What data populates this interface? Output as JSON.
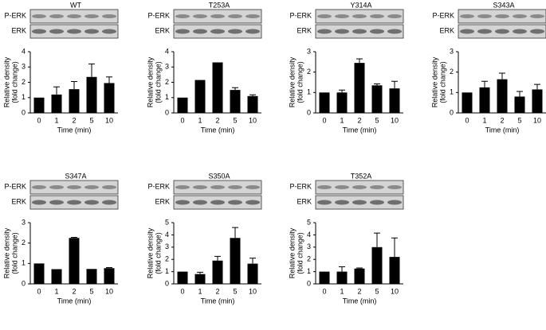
{
  "chart_data": [
    {
      "type": "bar",
      "title": "WT",
      "blot_labels": [
        "P-ERK",
        "ERK"
      ],
      "categories": [
        "0",
        "1",
        "2",
        "5",
        "10"
      ],
      "values": [
        1,
        1.2,
        1.55,
        2.35,
        1.95
      ],
      "errors": [
        0,
        0.5,
        0.5,
        0.85,
        0.4
      ],
      "color": "#000000",
      "ylim": [
        0,
        4
      ],
      "yticks": [
        0,
        1,
        2,
        3,
        4
      ],
      "xlabel": "Time (min)",
      "ylabel": [
        "Relative density",
        "(fold change)"
      ]
    },
    {
      "type": "bar",
      "title": "T253A",
      "blot_labels": [
        "P-ERK",
        "ERK"
      ],
      "categories": [
        "0",
        "1",
        "2",
        "5",
        "10"
      ],
      "values": [
        1,
        2.15,
        3.3,
        1.5,
        1.1
      ],
      "errors": [
        0,
        0,
        0,
        0.15,
        0.08
      ],
      "color": "#000000",
      "ylim": [
        0,
        4
      ],
      "yticks": [
        0,
        1,
        2,
        3,
        4
      ],
      "xlabel": "Time (min)",
      "ylabel": [
        "Relative density",
        "(fold change)"
      ]
    },
    {
      "type": "bar",
      "title": "Y314A",
      "blot_labels": [
        "P-ERK",
        "ERK"
      ],
      "categories": [
        "0",
        "1",
        "2",
        "5",
        "10"
      ],
      "values": [
        1,
        1,
        2.45,
        1.35,
        1.2
      ],
      "errors": [
        0,
        0.12,
        0.2,
        0.07,
        0.35
      ],
      "color": "#000000",
      "ylim": [
        0,
        3
      ],
      "yticks": [
        0,
        1,
        2,
        3
      ],
      "xlabel": "Time (min)",
      "ylabel": [
        "Relative density",
        "(fold change)"
      ]
    },
    {
      "type": "bar",
      "title": "S343A",
      "blot_labels": [
        "P-ERK",
        "ERK"
      ],
      "categories": [
        "0",
        "1",
        "2",
        "5",
        "10"
      ],
      "values": [
        1,
        1.25,
        1.65,
        0.8,
        1.15
      ],
      "errors": [
        0,
        0.3,
        0.3,
        0.25,
        0.25
      ],
      "color": "#000000",
      "ylim": [
        0,
        3
      ],
      "yticks": [
        0,
        1,
        2,
        3
      ],
      "xlabel": "Time (min)",
      "ylabel": [
        "Relative density",
        "(fold change)"
      ]
    },
    {
      "type": "bar",
      "title": "S347A",
      "blot_labels": [
        "P-ERK",
        "ERK"
      ],
      "categories": [
        "0",
        "1",
        "2",
        "5",
        "10"
      ],
      "values": [
        1,
        0.72,
        2.25,
        0.73,
        0.77
      ],
      "errors": [
        0,
        0,
        0.03,
        0,
        0.03
      ],
      "color": "#000000",
      "ylim": [
        0,
        3
      ],
      "yticks": [
        0,
        1,
        2,
        3
      ],
      "xlabel": "Time (min)",
      "ylabel": [
        "Relative density",
        "(fold change)"
      ]
    },
    {
      "type": "bar",
      "title": "S350A",
      "blot_labels": [
        "P-ERK",
        "ERK"
      ],
      "categories": [
        "0",
        "1",
        "2",
        "5",
        "10"
      ],
      "values": [
        1,
        0.8,
        1.9,
        3.75,
        1.65
      ],
      "errors": [
        0,
        0.15,
        0.35,
        0.85,
        0.45
      ],
      "color": "#000000",
      "ylim": [
        0,
        5
      ],
      "yticks": [
        0,
        1,
        2,
        3,
        4,
        5
      ],
      "xlabel": "Time (min)",
      "ylabel": [
        "Relative density",
        "(fold change)"
      ]
    },
    {
      "type": "bar",
      "title": "T352A",
      "blot_labels": [
        "P-ERK",
        "ERK"
      ],
      "categories": [
        "0",
        "1",
        "2",
        "5",
        "10"
      ],
      "values": [
        1,
        1,
        1.25,
        3,
        2.2
      ],
      "errors": [
        0,
        0.4,
        0.05,
        1.15,
        1.55
      ],
      "color": "#000000",
      "ylim": [
        0,
        5
      ],
      "yticks": [
        0,
        1,
        2,
        3,
        4,
        5
      ],
      "xlabel": "Time (min)",
      "ylabel": [
        "Relative density",
        "(fold change)"
      ]
    }
  ]
}
